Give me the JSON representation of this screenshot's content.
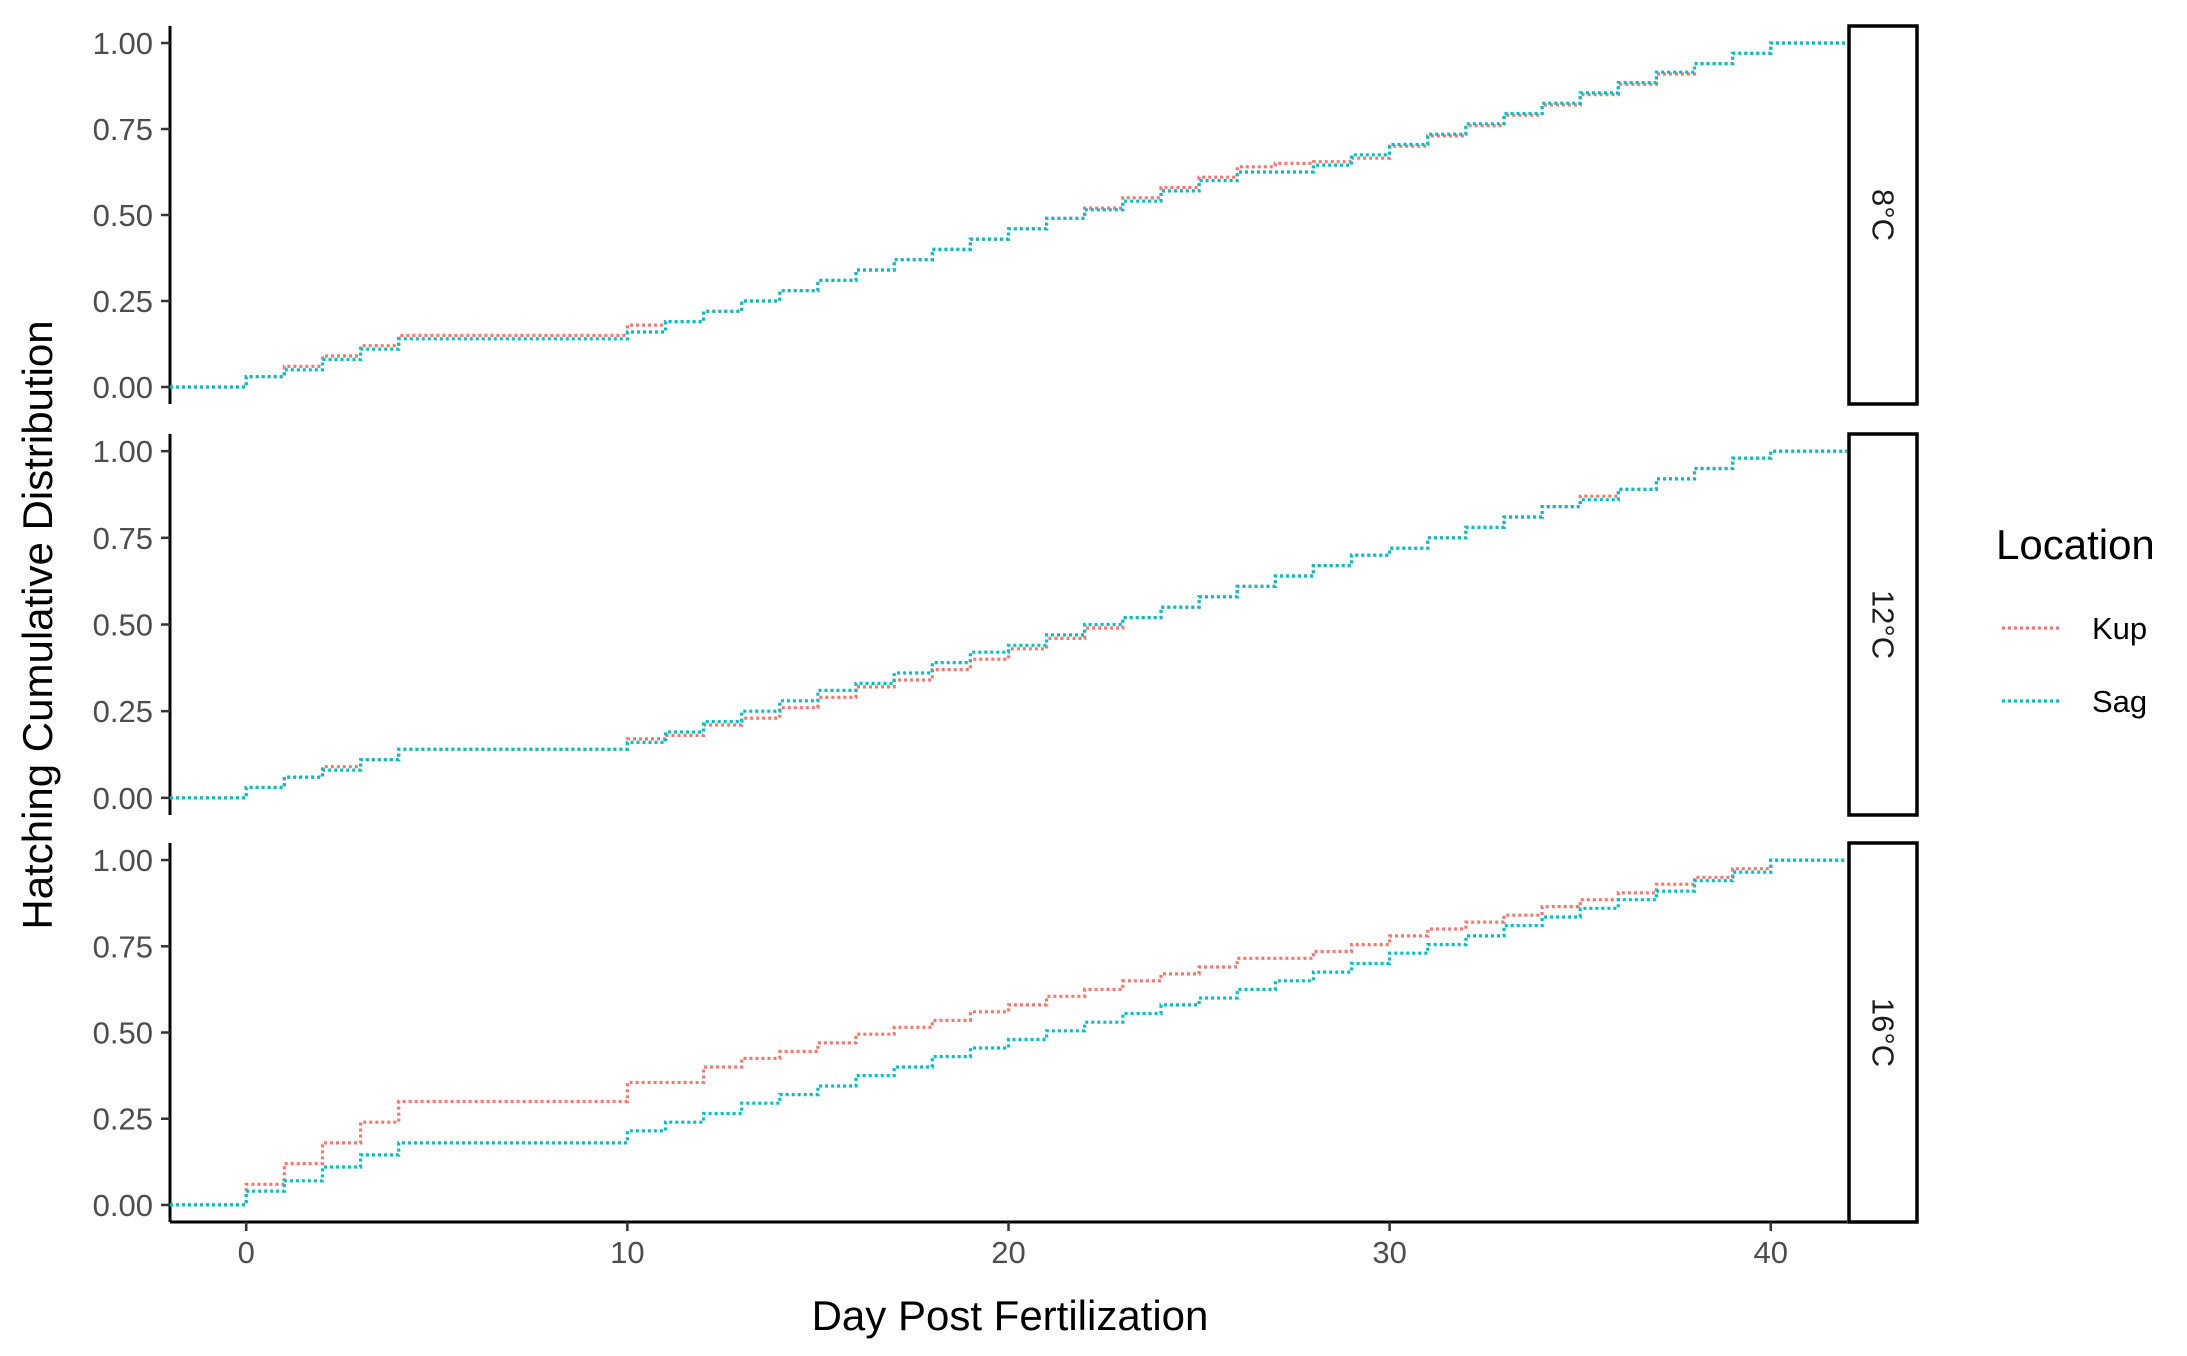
{
  "chart_data": {
    "type": "line",
    "step": true,
    "xlabel": "Day Post Fertilization",
    "ylabel": "Hatching Cumulative Distribution",
    "xlim": [
      -2,
      42
    ],
    "ylim": [
      0,
      1
    ],
    "x_ticks": [
      0,
      10,
      20,
      30,
      40
    ],
    "x_tick_labels": [
      "0",
      "10",
      "20",
      "30",
      "40"
    ],
    "y_ticks": [
      0,
      0.25,
      0.5,
      0.75,
      1.0
    ],
    "y_tick_labels": [
      "0.00",
      "0.25",
      "0.50",
      "0.75",
      "1.00"
    ],
    "grid": false,
    "line_style": "dotted",
    "legend": {
      "title": "Location",
      "placement": "right",
      "entries": [
        {
          "name": "Kup",
          "color": "#F8766D"
        },
        {
          "name": "Sag",
          "color": "#00BFC4"
        }
      ]
    },
    "panels": [
      {
        "label": "8°C",
        "series": [
          {
            "name": "Kup",
            "color": "#F8766D",
            "x": [
              -2,
              0,
              1,
              2,
              3,
              4,
              10,
              11,
              12,
              13,
              14,
              15,
              16,
              17,
              18,
              19,
              20,
              21,
              22,
              23,
              24,
              25,
              26,
              27,
              28,
              29,
              30,
              31,
              32,
              33,
              34,
              35,
              36,
              37,
              38,
              39,
              40,
              42
            ],
            "y": [
              0,
              0.03,
              0.06,
              0.09,
              0.12,
              0.15,
              0.18,
              0.19,
              0.22,
              0.25,
              0.28,
              0.31,
              0.34,
              0.37,
              0.4,
              0.43,
              0.46,
              0.49,
              0.52,
              0.55,
              0.58,
              0.61,
              0.64,
              0.65,
              0.655,
              0.665,
              0.7,
              0.73,
              0.76,
              0.79,
              0.82,
              0.85,
              0.88,
              0.91,
              0.94,
              0.97,
              1.0,
              1.0
            ]
          },
          {
            "name": "Sag",
            "color": "#00BFC4",
            "x": [
              -2,
              0,
              1,
              2,
              3,
              4,
              10,
              11,
              12,
              13,
              14,
              15,
              16,
              17,
              18,
              19,
              20,
              21,
              22,
              23,
              24,
              25,
              26,
              27,
              28,
              29,
              30,
              31,
              32,
              33,
              34,
              35,
              36,
              37,
              38,
              39,
              40,
              42
            ],
            "y": [
              0,
              0.03,
              0.05,
              0.08,
              0.11,
              0.14,
              0.16,
              0.19,
              0.22,
              0.25,
              0.28,
              0.31,
              0.34,
              0.37,
              0.4,
              0.43,
              0.46,
              0.49,
              0.515,
              0.54,
              0.57,
              0.6,
              0.625,
              0.625,
              0.645,
              0.675,
              0.705,
              0.735,
              0.765,
              0.795,
              0.825,
              0.855,
              0.885,
              0.915,
              0.94,
              0.97,
              1.0,
              1.0
            ]
          }
        ]
      },
      {
        "label": "12°C",
        "series": [
          {
            "name": "Kup",
            "color": "#F8766D",
            "x": [
              -2,
              0,
              1,
              2,
              3,
              4,
              10,
              11,
              12,
              13,
              14,
              15,
              16,
              17,
              18,
              19,
              20,
              21,
              22,
              23,
              24,
              25,
              26,
              27,
              28,
              29,
              30,
              31,
              32,
              33,
              34,
              35,
              36,
              37,
              38,
              39,
              40,
              42
            ],
            "y": [
              0,
              0.03,
              0.06,
              0.09,
              0.11,
              0.14,
              0.17,
              0.18,
              0.21,
              0.23,
              0.26,
              0.29,
              0.32,
              0.34,
              0.37,
              0.4,
              0.43,
              0.46,
              0.49,
              0.52,
              0.55,
              0.58,
              0.61,
              0.64,
              0.67,
              0.7,
              0.72,
              0.75,
              0.78,
              0.81,
              0.84,
              0.87,
              0.89,
              0.92,
              0.95,
              0.98,
              1.0,
              1.0
            ]
          },
          {
            "name": "Sag",
            "color": "#00BFC4",
            "x": [
              -2,
              0,
              1,
              2,
              3,
              4,
              10,
              11,
              12,
              13,
              14,
              15,
              16,
              17,
              18,
              19,
              20,
              21,
              22,
              23,
              24,
              25,
              26,
              27,
              28,
              29,
              30,
              31,
              32,
              33,
              34,
              35,
              36,
              37,
              38,
              39,
              40,
              42
            ],
            "y": [
              0,
              0.03,
              0.06,
              0.08,
              0.11,
              0.14,
              0.16,
              0.19,
              0.22,
              0.25,
              0.28,
              0.31,
              0.33,
              0.36,
              0.39,
              0.42,
              0.44,
              0.47,
              0.5,
              0.52,
              0.55,
              0.58,
              0.61,
              0.64,
              0.67,
              0.7,
              0.72,
              0.75,
              0.78,
              0.81,
              0.84,
              0.86,
              0.89,
              0.92,
              0.95,
              0.98,
              1.0,
              1.0
            ]
          }
        ]
      },
      {
        "label": "16°C",
        "series": [
          {
            "name": "Kup",
            "color": "#F8766D",
            "x": [
              -2,
              0,
              1,
              2,
              3,
              4,
              10,
              12,
              13,
              14,
              15,
              16,
              17,
              18,
              19,
              20,
              21,
              22,
              23,
              24,
              25,
              26,
              27,
              28,
              29,
              30,
              31,
              32,
              33,
              34,
              35,
              36,
              37,
              38,
              39,
              40,
              42
            ],
            "y": [
              0,
              0.06,
              0.12,
              0.18,
              0.24,
              0.3,
              0.355,
              0.4,
              0.425,
              0.445,
              0.47,
              0.495,
              0.515,
              0.535,
              0.56,
              0.58,
              0.605,
              0.625,
              0.65,
              0.67,
              0.69,
              0.715,
              0.715,
              0.735,
              0.755,
              0.78,
              0.8,
              0.82,
              0.84,
              0.865,
              0.885,
              0.905,
              0.93,
              0.95,
              0.975,
              1.0,
              1.0
            ]
          },
          {
            "name": "Sag",
            "color": "#00BFC4",
            "x": [
              -2,
              0,
              1,
              2,
              3,
              4,
              10,
              11,
              12,
              13,
              14,
              15,
              16,
              17,
              18,
              19,
              20,
              21,
              22,
              23,
              24,
              25,
              26,
              27,
              28,
              29,
              30,
              31,
              32,
              33,
              34,
              35,
              36,
              37,
              38,
              39,
              40,
              42
            ],
            "y": [
              0,
              0.04,
              0.07,
              0.11,
              0.145,
              0.18,
              0.215,
              0.24,
              0.265,
              0.295,
              0.32,
              0.345,
              0.375,
              0.4,
              0.43,
              0.455,
              0.48,
              0.505,
              0.53,
              0.555,
              0.58,
              0.6,
              0.625,
              0.65,
              0.675,
              0.7,
              0.73,
              0.755,
              0.78,
              0.81,
              0.835,
              0.86,
              0.885,
              0.91,
              0.94,
              0.965,
              1.0,
              1.0
            ]
          }
        ]
      }
    ]
  }
}
